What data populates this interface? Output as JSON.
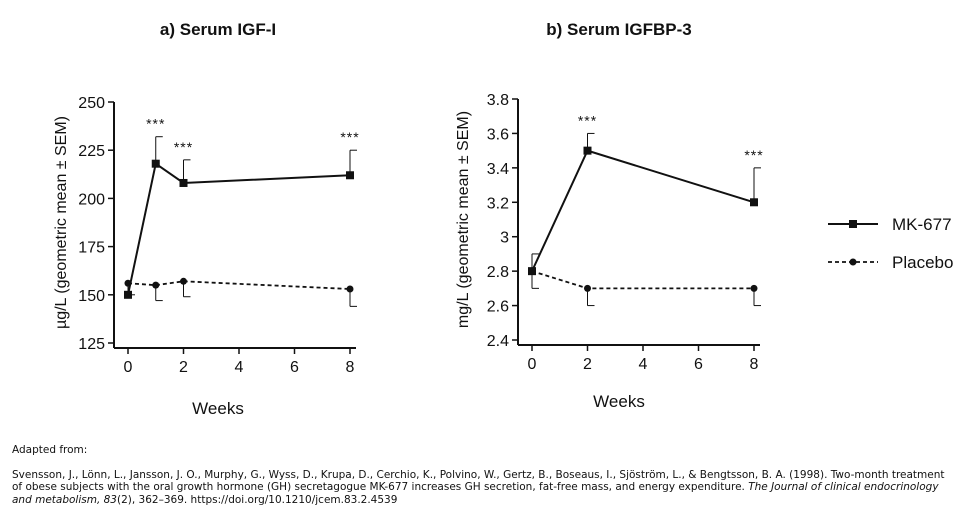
{
  "chart_data": [
    {
      "type": "line",
      "title": "a) Serum IGF-I",
      "xlabel": "Weeks",
      "ylabel": "µg/L (geometric mean ± SEM)",
      "xlim": [
        0,
        8
      ],
      "ylim": [
        125,
        250
      ],
      "xticks": [
        0,
        2,
        4,
        6,
        8
      ],
      "yticks": [
        125,
        150,
        175,
        200,
        225,
        250
      ],
      "grid": false,
      "series": [
        {
          "name": "MK-677",
          "marker": "square",
          "style": "solid",
          "x": [
            0,
            1,
            2,
            8
          ],
          "y": [
            150,
            218,
            208,
            212
          ],
          "sem": [
            0,
            14,
            12,
            13
          ]
        },
        {
          "name": "Placebo",
          "marker": "circle",
          "style": "dashed",
          "x": [
            0,
            1,
            2,
            8
          ],
          "y": [
            156,
            155,
            157,
            153
          ],
          "sem": [
            6,
            8,
            8,
            9
          ]
        }
      ],
      "annotations": [
        {
          "x": 1,
          "text": "***"
        },
        {
          "x": 2,
          "text": "***"
        },
        {
          "x": 8,
          "text": "***"
        }
      ]
    },
    {
      "type": "line",
      "title": "b) Serum IGFBP-3",
      "xlabel": "Weeks",
      "ylabel": "mg/L (geometric mean ± SEM)",
      "xlim": [
        0,
        8
      ],
      "ylim": [
        2.4,
        3.8
      ],
      "xticks": [
        0,
        2,
        4,
        6,
        8
      ],
      "yticks": [
        2.4,
        2.6,
        2.8,
        3,
        3.2,
        3.4,
        3.6,
        3.8
      ],
      "grid": false,
      "series": [
        {
          "name": "MK-677",
          "marker": "square",
          "style": "solid",
          "x": [
            0,
            2,
            8
          ],
          "y": [
            2.8,
            3.5,
            3.2
          ],
          "sem": [
            0.1,
            0.1,
            0.2
          ]
        },
        {
          "name": "Placebo",
          "marker": "circle",
          "style": "dashed",
          "x": [
            0,
            2,
            8
          ],
          "y": [
            2.8,
            2.7,
            2.7
          ],
          "sem": [
            0.1,
            0.1,
            0.1
          ]
        }
      ],
      "annotations": [
        {
          "x": 2,
          "text": "***"
        },
        {
          "x": 8,
          "text": "***"
        }
      ]
    }
  ],
  "legend": {
    "placement": "right",
    "entries": [
      {
        "label": "MK-677",
        "marker": "square",
        "style": "solid"
      },
      {
        "label": "Placebo",
        "marker": "circle",
        "style": "dashed"
      }
    ]
  },
  "caption": {
    "intro": "Adapted from:",
    "before_journal": "Svensson, J., Lönn, L., Jansson, J. O., Murphy, G., Wyss, D., Krupa, D., Cerchio, K., Polvino, W., Gertz, B., Boseaus, I., Sjöström, L., & Bengtsson, B. A. (1998). Two-month treatment of obese subjects with the oral growth hormone (GH) secretagogue MK-677 increases GH secretion, fat-free mass, and energy expenditure. ",
    "journal": "The Journal of clinical endocrinology and metabolism, 83",
    "after_journal": "(2), 362–369. https://doi.org/10.1210/jcem.83.2.4539"
  },
  "colors": {
    "line": "#111111",
    "background": "#ffffff"
  }
}
